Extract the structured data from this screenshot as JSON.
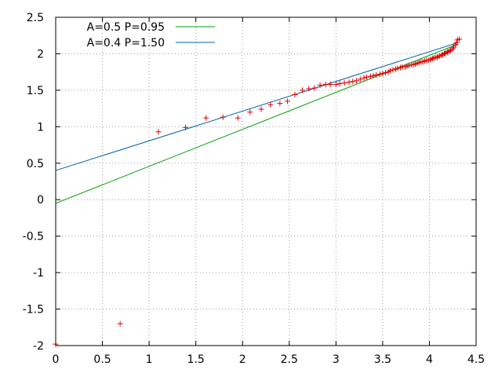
{
  "chart_data": {
    "type": "scatter",
    "title": "",
    "xlabel": "",
    "ylabel": "",
    "xlim": [
      0,
      4.5
    ],
    "ylim": [
      -2,
      2.5
    ],
    "xticks": [
      "0",
      "0.5",
      "1",
      "1.5",
      "2",
      "2.5",
      "3",
      "3.5",
      "4",
      "4.5"
    ],
    "yticks": [
      "-2",
      "-1.5",
      "-1",
      "-0.5",
      "0",
      "0.5",
      "1",
      "1.5",
      "2",
      "2.5"
    ],
    "grid": true,
    "legend_position": "top-left",
    "series": [
      {
        "name": "A=0.5 P=0.95",
        "kind": "line",
        "color": "#00a000",
        "x": [
          0,
          4.3
        ],
        "y": [
          -0.05,
          2.13
        ]
      },
      {
        "name": "A=0.4 P=1.50",
        "kind": "line",
        "color": "#0060ad",
        "x": [
          0,
          4.3
        ],
        "y": [
          0.4,
          2.15
        ]
      },
      {
        "name": "",
        "kind": "points",
        "color": "#e00000",
        "x": [
          0,
          0.69,
          1.1,
          1.39,
          1.61,
          1.79,
          1.95,
          2.08,
          2.2,
          2.3,
          2.4,
          2.48,
          2.56,
          2.64,
          2.71,
          2.77,
          2.83,
          2.89,
          2.94,
          3.0,
          3.04,
          3.09,
          3.14,
          3.18,
          3.22,
          3.26,
          3.3,
          3.33,
          3.37,
          3.4,
          3.43,
          3.47,
          3.5,
          3.53,
          3.56,
          3.58,
          3.61,
          3.64,
          3.66,
          3.69,
          3.71,
          3.74,
          3.76,
          3.78,
          3.81,
          3.83,
          3.85,
          3.87,
          3.89,
          3.91,
          3.93,
          3.95,
          3.97,
          3.99,
          4.01,
          4.03,
          4.04,
          4.06,
          4.08,
          4.09,
          4.11,
          4.13,
          4.14,
          4.16,
          4.17,
          4.19,
          4.2,
          4.22,
          4.23,
          4.25,
          4.26,
          4.28,
          4.29,
          4.3,
          4.32
        ],
        "y": [
          -1.98,
          -1.7,
          0.93,
          0.99,
          1.12,
          1.13,
          1.12,
          1.2,
          1.24,
          1.3,
          1.32,
          1.35,
          1.44,
          1.5,
          1.52,
          1.53,
          1.57,
          1.58,
          1.58,
          1.58,
          1.59,
          1.6,
          1.61,
          1.62,
          1.63,
          1.65,
          1.67,
          1.68,
          1.69,
          1.7,
          1.71,
          1.72,
          1.73,
          1.74,
          1.75,
          1.77,
          1.78,
          1.79,
          1.8,
          1.81,
          1.82,
          1.82,
          1.83,
          1.84,
          1.85,
          1.85,
          1.86,
          1.87,
          1.88,
          1.89,
          1.89,
          1.9,
          1.91,
          1.91,
          1.92,
          1.93,
          1.94,
          1.95,
          1.95,
          1.96,
          1.97,
          1.98,
          1.99,
          2.0,
          2.01,
          2.02,
          2.03,
          2.04,
          2.05,
          2.07,
          2.09,
          2.12,
          2.15,
          2.19,
          2.2
        ]
      }
    ]
  }
}
